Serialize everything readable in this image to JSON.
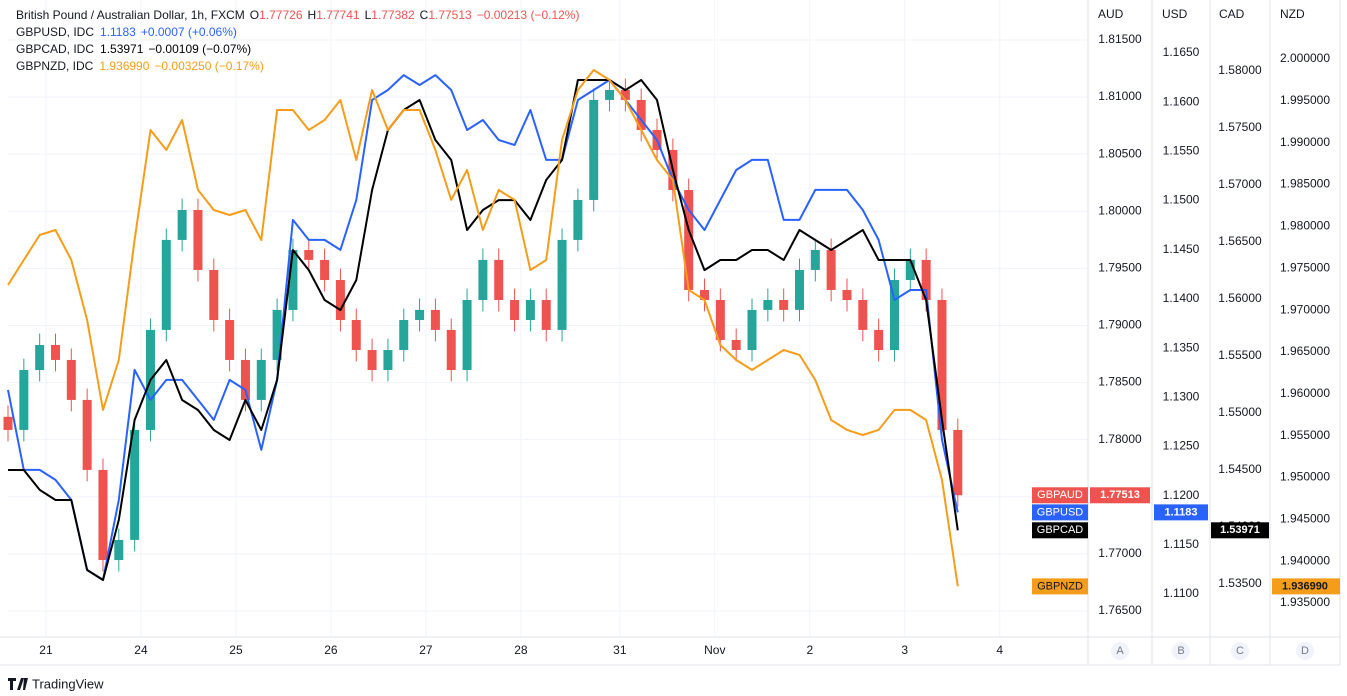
{
  "chart_data": {
    "type": "candlestick",
    "title": "British Pound / Australian Dollar, 1h, FXCM",
    "legend": {
      "labels": [
        "O",
        "H",
        "L",
        "C"
      ],
      "values": [
        1.77726,
        1.77741,
        1.77382,
        1.77513
      ],
      "change": "−0.00213 (−0.12%)"
    },
    "grid": true,
    "x": [
      0,
      4,
      8,
      12,
      16,
      20,
      24,
      28,
      32,
      36,
      40,
      44,
      48,
      52,
      56,
      60,
      64,
      68,
      72,
      76,
      80,
      84,
      88,
      92,
      96,
      100,
      104,
      108,
      112,
      116,
      120,
      124,
      128,
      132,
      136,
      140,
      144,
      148,
      152,
      156,
      160,
      164,
      168,
      172,
      176,
      180,
      184,
      188,
      192,
      196,
      200,
      204,
      208,
      212,
      216,
      220,
      224,
      228,
      232,
      236,
      240
    ],
    "xlim": [
      0,
      272.9
    ],
    "xticks": [
      {
        "value": 9.6,
        "label": "21"
      },
      {
        "value": 33.6,
        "label": "24"
      },
      {
        "value": 57.6,
        "label": "25"
      },
      {
        "value": 81.6,
        "label": "26"
      },
      {
        "value": 105.6,
        "label": "27"
      },
      {
        "value": 129.6,
        "label": "28"
      },
      {
        "value": 154.6,
        "label": "31"
      },
      {
        "value": 178.6,
        "label": "Nov"
      },
      {
        "value": 202.6,
        "label": "2"
      },
      {
        "value": 226.6,
        "label": "3"
      },
      {
        "value": 250.6,
        "label": "4"
      }
    ],
    "axes": [
      {
        "name": "AUD",
        "letter": "A",
        "ylim": [
          1.76272,
          1.8185
        ],
        "yticks": [
          {
            "value": 1.815,
            "label": "1.81500"
          },
          {
            "value": 1.81,
            "label": "1.81000"
          },
          {
            "value": 1.805,
            "label": "1.80500"
          },
          {
            "value": 1.8,
            "label": "1.80000"
          },
          {
            "value": 1.795,
            "label": "1.79500"
          },
          {
            "value": 1.79,
            "label": "1.79000"
          },
          {
            "value": 1.785,
            "label": "1.78500"
          },
          {
            "value": 1.78,
            "label": "1.78000"
          },
          {
            "value": 1.775,
            "label": "1.77500"
          },
          {
            "value": 1.77,
            "label": "1.77000"
          },
          {
            "value": 1.765,
            "label": "1.76500"
          }
        ]
      },
      {
        "name": "USD",
        "letter": "B",
        "ylim": [
          1.10563,
          1.17039
        ],
        "yticks": [
          {
            "value": 1.165,
            "label": "1.1650"
          },
          {
            "value": 1.16,
            "label": "1.1600"
          },
          {
            "value": 1.155,
            "label": "1.1550"
          },
          {
            "value": 1.15,
            "label": "1.1500"
          },
          {
            "value": 1.145,
            "label": "1.1450"
          },
          {
            "value": 1.14,
            "label": "1.1400"
          },
          {
            "value": 1.135,
            "label": "1.1350"
          },
          {
            "value": 1.13,
            "label": "1.1300"
          },
          {
            "value": 1.125,
            "label": "1.1250"
          },
          {
            "value": 1.12,
            "label": "1.1200"
          },
          {
            "value": 1.115,
            "label": "1.1150"
          },
          {
            "value": 1.11,
            "label": "1.1100"
          }
        ]
      },
      {
        "name": "CAD",
        "letter": "C",
        "ylim": [
          1.53035,
          1.58623
        ],
        "yticks": [
          {
            "value": 1.58,
            "label": "1.58000"
          },
          {
            "value": 1.575,
            "label": "1.57500"
          },
          {
            "value": 1.57,
            "label": "1.57000"
          },
          {
            "value": 1.565,
            "label": "1.56500"
          },
          {
            "value": 1.56,
            "label": "1.56000"
          },
          {
            "value": 1.555,
            "label": "1.55500"
          },
          {
            "value": 1.55,
            "label": "1.55000"
          },
          {
            "value": 1.545,
            "label": "1.54500"
          },
          {
            "value": 1.54,
            "label": "1.54000"
          },
          {
            "value": 1.535,
            "label": "1.53500"
          }
        ]
      },
      {
        "name": "NZD",
        "letter": "D",
        "ylim": [
          1.93094,
          2.00705
        ],
        "yticks": [
          {
            "value": 2.0,
            "label": "2.000000"
          },
          {
            "value": 1.995,
            "label": "1.995000"
          },
          {
            "value": 1.99,
            "label": "1.990000"
          },
          {
            "value": 1.985,
            "label": "1.985000"
          },
          {
            "value": 1.98,
            "label": "1.980000"
          },
          {
            "value": 1.975,
            "label": "1.975000"
          },
          {
            "value": 1.97,
            "label": "1.970000"
          },
          {
            "value": 1.965,
            "label": "1.965000"
          },
          {
            "value": 1.96,
            "label": "1.960000"
          },
          {
            "value": 1.955,
            "label": "1.955000"
          },
          {
            "value": 1.95,
            "label": "1.950000"
          },
          {
            "value": 1.945,
            "label": "1.945000"
          },
          {
            "value": 1.94,
            "label": "1.940000"
          },
          {
            "value": 1.935,
            "label": "1.935000"
          }
        ]
      }
    ],
    "series": [
      {
        "name": "GBPAUD",
        "type": "candlestick",
        "axis": 0,
        "color": "#ef5350",
        "up_color": "#26a69a",
        "tag_label": "1.77513",
        "open": [
          1.782,
          1.78085,
          1.7861,
          1.78829,
          1.78698,
          1.78348,
          1.77735,
          1.76946,
          1.77122,
          1.78085,
          1.78961,
          1.79749,
          1.80011,
          1.79486,
          1.79048,
          1.78698,
          1.78348,
          1.78698,
          1.79136,
          1.79661,
          1.79574,
          1.79398,
          1.79048,
          1.78785,
          1.7861,
          1.78785,
          1.79048,
          1.79136,
          1.78961,
          1.7861,
          1.79223,
          1.79574,
          1.79223,
          1.79048,
          1.79223,
          1.78961,
          1.79749,
          1.80099,
          1.80975,
          1.81062,
          1.80975,
          1.80712,
          1.80537,
          1.80186,
          1.79311,
          1.79223,
          1.78873,
          1.78785,
          1.79136,
          1.79223,
          1.79136,
          1.79486,
          1.79661,
          1.79311,
          1.79223,
          1.78961,
          1.78785,
          1.79398,
          1.79574,
          1.79223,
          1.78085
        ],
        "high": [
          1.783,
          1.7871,
          1.78929,
          1.78929,
          1.78798,
          1.78448,
          1.77835,
          1.77222,
          1.78185,
          1.79061,
          1.79849,
          1.80111,
          1.80111,
          1.79586,
          1.79148,
          1.78798,
          1.78798,
          1.79236,
          1.79761,
          1.79761,
          1.79674,
          1.79498,
          1.79148,
          1.78885,
          1.78885,
          1.79148,
          1.79236,
          1.79236,
          1.79061,
          1.79323,
          1.79674,
          1.79674,
          1.79323,
          1.79323,
          1.79323,
          1.79849,
          1.80199,
          1.81075,
          1.81162,
          1.81162,
          1.81075,
          1.80812,
          1.80637,
          1.80286,
          1.79411,
          1.79323,
          1.78973,
          1.79236,
          1.79323,
          1.79323,
          1.79586,
          1.79761,
          1.79761,
          1.79411,
          1.79323,
          1.79061,
          1.79498,
          1.79674,
          1.79674,
          1.79323,
          1.78185
        ],
        "low": [
          1.77985,
          1.77985,
          1.7851,
          1.78598,
          1.78248,
          1.77635,
          1.76846,
          1.76846,
          1.77022,
          1.77985,
          1.78861,
          1.79649,
          1.79386,
          1.78948,
          1.78598,
          1.78248,
          1.78248,
          1.78598,
          1.79036,
          1.79474,
          1.79298,
          1.78948,
          1.78685,
          1.7851,
          1.7851,
          1.78685,
          1.78948,
          1.78861,
          1.7851,
          1.7851,
          1.79123,
          1.79123,
          1.78948,
          1.78948,
          1.78861,
          1.78861,
          1.79649,
          1.79999,
          1.80875,
          1.80875,
          1.80612,
          1.80437,
          1.80086,
          1.79211,
          1.79123,
          1.78773,
          1.78685,
          1.78685,
          1.79036,
          1.79036,
          1.79036,
          1.79386,
          1.79211,
          1.79123,
          1.78861,
          1.78685,
          1.78685,
          1.79298,
          1.79123,
          1.77985,
          1.77413
        ],
        "close": [
          1.78085,
          1.7861,
          1.78829,
          1.78698,
          1.78348,
          1.77735,
          1.76946,
          1.77122,
          1.78085,
          1.78961,
          1.79749,
          1.80011,
          1.79486,
          1.79048,
          1.78698,
          1.78348,
          1.78698,
          1.79136,
          1.79661,
          1.79574,
          1.79398,
          1.79048,
          1.78785,
          1.7861,
          1.78785,
          1.79048,
          1.79136,
          1.78961,
          1.7861,
          1.79223,
          1.79574,
          1.79223,
          1.79048,
          1.79223,
          1.78961,
          1.79749,
          1.80099,
          1.80975,
          1.81062,
          1.80975,
          1.80712,
          1.80537,
          1.80186,
          1.79311,
          1.79223,
          1.78873,
          1.78785,
          1.79136,
          1.79223,
          1.79136,
          1.79486,
          1.79661,
          1.79311,
          1.79223,
          1.78961,
          1.78785,
          1.79398,
          1.79574,
          1.79223,
          1.78085,
          1.77513
        ]
      },
      {
        "name": "GBPUSD",
        "type": "line",
        "axis": 1,
        "color": "#2962ff",
        "text_color": "#ffffff",
        "tag_label": "1.1183",
        "legend_text": "GBPUSD, IDC",
        "legend_value": "1.1183",
        "legend_change": "+0.0007 (+0.06%)",
        "values": [
          1.13075,
          1.12262,
          1.12262,
          1.1216,
          1.11957,
          1.11246,
          1.11144,
          1.11957,
          1.13278,
          1.12973,
          1.13177,
          1.13177,
          1.12973,
          1.1277,
          1.13177,
          1.13075,
          1.12465,
          1.13177,
          1.14803,
          1.146,
          1.146,
          1.14498,
          1.15006,
          1.16022,
          1.16124,
          1.16276,
          1.16175,
          1.16276,
          1.16124,
          1.15717,
          1.15819,
          1.15616,
          1.15565,
          1.15921,
          1.15413,
          1.15413,
          1.16022,
          1.16124,
          1.16226,
          1.16022,
          1.15819,
          1.15616,
          1.15209,
          1.14904,
          1.14701,
          1.15006,
          1.15311,
          1.15413,
          1.15413,
          1.14803,
          1.14803,
          1.15108,
          1.15108,
          1.15108,
          1.14904,
          1.146,
          1.1399,
          1.14091,
          1.14091,
          1.12567,
          1.1183
        ]
      },
      {
        "name": "GBPCAD",
        "type": "line",
        "axis": 2,
        "color": "#000000",
        "text_color": "#ffffff",
        "tag_label": "1.53971",
        "legend_text": "GBPCAD, IDC",
        "legend_value": "1.53971",
        "legend_change": "−0.00109 (−0.07%)",
        "values": [
          1.545,
          1.545,
          1.54325,
          1.54237,
          1.54237,
          1.53623,
          1.53535,
          1.54061,
          1.54939,
          1.5529,
          1.55465,
          1.55114,
          1.55026,
          1.54851,
          1.54763,
          1.55114,
          1.54851,
          1.5529,
          1.5643,
          1.56254,
          1.55991,
          1.55904,
          1.56167,
          1.56956,
          1.57482,
          1.57658,
          1.57746,
          1.57395,
          1.57219,
          1.56605,
          1.56781,
          1.56868,
          1.56868,
          1.56693,
          1.57044,
          1.57219,
          1.57921,
          1.57921,
          1.57921,
          1.57833,
          1.57921,
          1.57746,
          1.57132,
          1.56605,
          1.56254,
          1.56342,
          1.56342,
          1.5643,
          1.5643,
          1.56342,
          1.56605,
          1.56518,
          1.5643,
          1.56518,
          1.56605,
          1.56342,
          1.56342,
          1.56342,
          1.55991,
          1.54939,
          1.53971
        ]
      },
      {
        "name": "GBPNZD",
        "type": "line",
        "axis": 3,
        "color": "#f59d1a",
        "text_color": "#131722",
        "tag_label": "1.936990",
        "legend_text": "GBPNZD, IDC",
        "legend_value": "1.936990",
        "legend_change": "−0.003250 (−0.17%)",
        "values": [
          1.973,
          1.97599,
          1.97897,
          1.97957,
          1.97599,
          1.96882,
          1.95807,
          1.96404,
          1.97838,
          1.99152,
          1.98913,
          1.99271,
          1.98435,
          1.98196,
          1.98136,
          1.98196,
          1.97838,
          1.99391,
          1.99391,
          1.99152,
          1.99271,
          1.9951,
          1.98793,
          1.9963,
          1.99152,
          1.99391,
          1.99391,
          1.98913,
          1.98316,
          1.98674,
          1.97957,
          1.98435,
          1.98316,
          1.97479,
          1.97599,
          1.99032,
          1.9963,
          1.99869,
          1.99749,
          1.9951,
          1.99152,
          1.98793,
          1.98554,
          1.9724,
          1.97121,
          1.96583,
          1.96404,
          1.96285,
          1.96404,
          1.96523,
          1.96464,
          1.96165,
          1.95687,
          1.95568,
          1.95508,
          1.95568,
          1.95807,
          1.95807,
          1.95687,
          1.9497,
          1.93699
        ]
      }
    ],
    "footer": "TradingView"
  }
}
